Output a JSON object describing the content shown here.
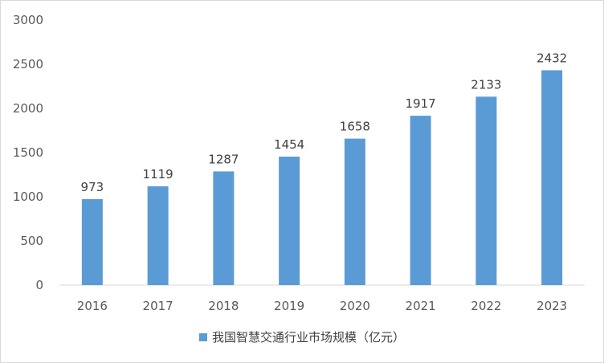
{
  "chart_data": {
    "type": "bar",
    "title": "",
    "xlabel": "",
    "ylabel": "",
    "categories": [
      "2016",
      "2017",
      "2018",
      "2019",
      "2020",
      "2021",
      "2022",
      "2023"
    ],
    "series": [
      {
        "name": "我国智慧交通行业市场规模（亿元）",
        "values": [
          973,
          1119,
          1287,
          1454,
          1658,
          1917,
          2133,
          2432
        ],
        "color": "#5B9BD5"
      }
    ],
    "ylim": [
      0,
      3000
    ],
    "yticks": [
      0,
      500,
      1000,
      1500,
      2000,
      2500,
      3000
    ],
    "grid": false,
    "data_labels": true,
    "legend": "bottom"
  }
}
